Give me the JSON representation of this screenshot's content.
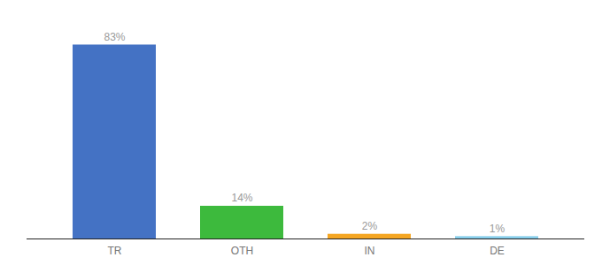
{
  "chart_data": {
    "type": "bar",
    "categories": [
      "TR",
      "OTH",
      "IN",
      "DE"
    ],
    "values": [
      83,
      14,
      2,
      1
    ],
    "value_labels": [
      "83%",
      "14%",
      "2%",
      "1%"
    ],
    "data_labels": true,
    "colors": [
      "#4472c4",
      "#3dba3d",
      "#f5a623",
      "#87ceeb"
    ],
    "ylim": [
      0,
      93
    ],
    "grid": false,
    "tick_labels": "x"
  }
}
